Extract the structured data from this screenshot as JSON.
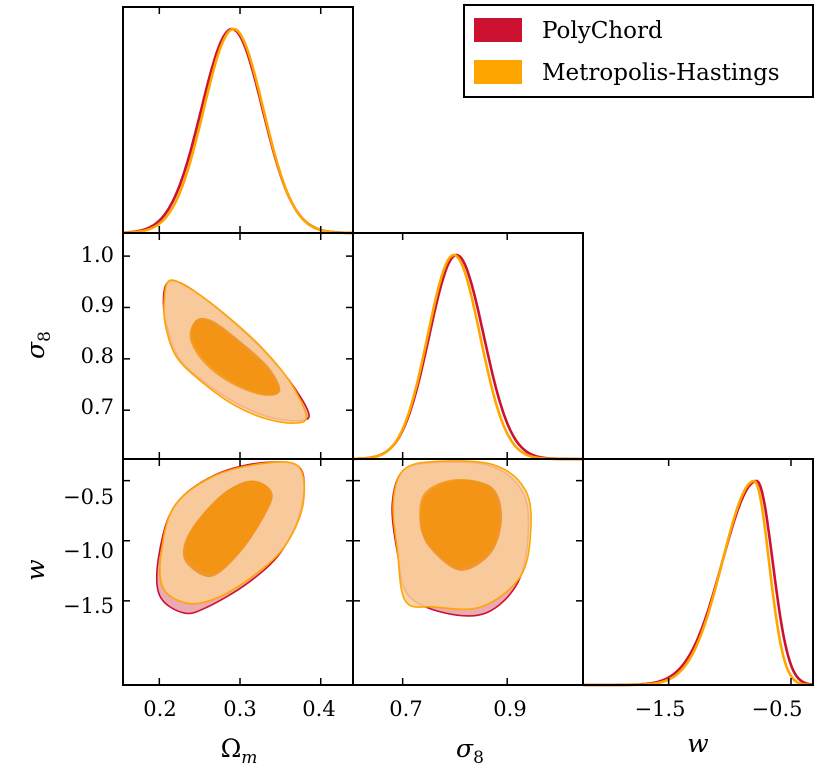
{
  "chart_data": {
    "type": "corner",
    "parameters": [
      "Ωm",
      "σ8",
      "w"
    ],
    "axis_labels": {
      "omega_m": {
        "base": "Ω",
        "sub": "m"
      },
      "sigma_8": {
        "base": "σ",
        "sub": "8"
      },
      "w": {
        "base": "w",
        "sub": ""
      }
    },
    "ranges": {
      "omega_m": [
        0.155,
        0.44
      ],
      "sigma_8": [
        0.605,
        1.045
      ],
      "w": [
        -2.2,
        -0.32
      ]
    },
    "ticks": {
      "omega_m": [
        0.2,
        0.3,
        0.4
      ],
      "sigma_8": [
        0.7,
        0.8,
        0.9,
        1.0
      ],
      "sigma_8_bottom": [
        0.7,
        0.9
      ],
      "w": [
        -0.5,
        -1.0,
        -1.5
      ],
      "w_bottom": [
        -1.5,
        -0.5
      ]
    },
    "tick_labels": {
      "omega_m": [
        "0.2",
        "0.3",
        "0.4"
      ],
      "sigma_8_left": [
        "0.7",
        "0.8",
        "0.9",
        "1.0"
      ],
      "sigma_8_bottom": [
        "0.7",
        "0.9"
      ],
      "w_left": [
        "−0.5",
        "−1.0",
        "−1.5"
      ],
      "w_bottom": [
        "−1.5",
        "−0.5"
      ]
    },
    "legend": {
      "location": "top-right",
      "entries": [
        {
          "label": "PolyChord",
          "color": "#cc1230"
        },
        {
          "label": "Metropolis-Hastings",
          "color": "#ffa500"
        }
      ]
    },
    "series": [
      {
        "name": "PolyChord",
        "color": "#cc1230",
        "light_fill": "#e8a0ab",
        "dark_fill": "#f08c1a",
        "marginals": {
          "omega_m": {
            "mean": 0.29,
            "sd": 0.038
          },
          "sigma_8": {
            "mean": 0.803,
            "sd": 0.052
          },
          "w": {
            "peak": -0.78,
            "sd_left": 0.28,
            "sd_right": 0.13
          }
        },
        "contours": {
          "omega_m_sigma_8": {
            "outer": [
              [
                0.21,
                0.948
              ],
              [
                0.23,
                0.945
              ],
              [
                0.27,
                0.9
              ],
              [
                0.32,
                0.83
              ],
              [
                0.36,
                0.76
              ],
              [
                0.385,
                0.695
              ],
              [
                0.375,
                0.68
              ],
              [
                0.34,
                0.685
              ],
              [
                0.3,
                0.71
              ],
              [
                0.26,
                0.75
              ],
              [
                0.225,
                0.8
              ],
              [
                0.21,
                0.86
              ],
              [
                0.205,
                0.91
              ]
            ],
            "inner": [
              [
                0.245,
                0.875
              ],
              [
                0.265,
                0.875
              ],
              [
                0.3,
                0.835
              ],
              [
                0.335,
                0.785
              ],
              [
                0.35,
                0.74
              ],
              [
                0.335,
                0.73
              ],
              [
                0.31,
                0.74
              ],
              [
                0.28,
                0.765
              ],
              [
                0.255,
                0.8
              ],
              [
                0.24,
                0.84
              ]
            ]
          },
          "omega_m_w": {
            "outer": [
              [
                0.2,
                -1.45
              ],
              [
                0.23,
                -1.6
              ],
              [
                0.26,
                -1.55
              ],
              [
                0.31,
                -1.35
              ],
              [
                0.35,
                -1.1
              ],
              [
                0.375,
                -0.75
              ],
              [
                0.375,
                -0.4
              ],
              [
                0.33,
                -0.35
              ],
              [
                0.27,
                -0.45
              ],
              [
                0.22,
                -0.7
              ],
              [
                0.2,
                -1.1
              ]
            ],
            "inner": [
              [
                0.235,
                -1.2
              ],
              [
                0.265,
                -1.3
              ],
              [
                0.3,
                -1.1
              ],
              [
                0.33,
                -0.8
              ],
              [
                0.34,
                -0.6
              ],
              [
                0.315,
                -0.5
              ],
              [
                0.28,
                -0.6
              ],
              [
                0.245,
                -0.85
              ],
              [
                0.23,
                -1.05
              ]
            ]
          },
          "sigma_8_w": {
            "outer": [
              [
                0.71,
                -1.45
              ],
              [
                0.78,
                -1.6
              ],
              [
                0.86,
                -1.6
              ],
              [
                0.92,
                -1.35
              ],
              [
                0.94,
                -0.95
              ],
              [
                0.93,
                -0.6
              ],
              [
                0.87,
                -0.38
              ],
              [
                0.76,
                -0.35
              ],
              [
                0.7,
                -0.42
              ],
              [
                0.68,
                -0.7
              ],
              [
                0.69,
                -1.1
              ]
            ],
            "inner": [
              [
                0.75,
                -1.05
              ],
              [
                0.81,
                -1.25
              ],
              [
                0.87,
                -1.1
              ],
              [
                0.89,
                -0.8
              ],
              [
                0.87,
                -0.55
              ],
              [
                0.8,
                -0.5
              ],
              [
                0.745,
                -0.62
              ],
              [
                0.735,
                -0.85
              ]
            ]
          }
        }
      },
      {
        "name": "Metropolis-Hastings",
        "color": "#ffa500",
        "light_fill": "#f9cf96",
        "dark_fill": "#f59412",
        "marginals": {
          "omega_m": {
            "mean": 0.292,
            "sd": 0.037
          },
          "sigma_8": {
            "mean": 0.798,
            "sd": 0.05
          },
          "w": {
            "peak": -0.8,
            "sd_left": 0.26,
            "sd_right": 0.12
          }
        },
        "contours": {
          "omega_m_sigma_8": {
            "outer": [
              [
                0.212,
                0.952
              ],
              [
                0.235,
                0.94
              ],
              [
                0.275,
                0.895
              ],
              [
                0.325,
                0.825
              ],
              [
                0.362,
                0.755
              ],
              [
                0.382,
                0.69
              ],
              [
                0.37,
                0.675
              ],
              [
                0.335,
                0.682
              ],
              [
                0.295,
                0.708
              ],
              [
                0.255,
                0.752
              ],
              [
                0.222,
                0.802
              ],
              [
                0.208,
                0.862
              ],
              [
                0.206,
                0.912
              ]
            ],
            "inner": [
              [
                0.243,
                0.87
              ],
              [
                0.262,
                0.872
              ],
              [
                0.297,
                0.832
              ],
              [
                0.333,
                0.78
              ],
              [
                0.348,
                0.737
              ],
              [
                0.333,
                0.728
              ],
              [
                0.308,
                0.738
              ],
              [
                0.277,
                0.763
              ],
              [
                0.252,
                0.798
              ],
              [
                0.238,
                0.838
              ]
            ]
          },
          "omega_m_w": {
            "outer": [
              [
                0.205,
                -1.4
              ],
              [
                0.235,
                -1.52
              ],
              [
                0.27,
                -1.48
              ],
              [
                0.315,
                -1.3
              ],
              [
                0.355,
                -1.05
              ],
              [
                0.378,
                -0.7
              ],
              [
                0.372,
                -0.38
              ],
              [
                0.325,
                -0.36
              ],
              [
                0.265,
                -0.47
              ],
              [
                0.218,
                -0.72
              ],
              [
                0.202,
                -1.12
              ]
            ],
            "inner": [
              [
                0.238,
                -1.18
              ],
              [
                0.268,
                -1.27
              ],
              [
                0.303,
                -1.07
              ],
              [
                0.332,
                -0.77
              ],
              [
                0.338,
                -0.58
              ],
              [
                0.312,
                -0.5
              ],
              [
                0.277,
                -0.62
              ],
              [
                0.243,
                -0.87
              ],
              [
                0.232,
                -1.06
              ]
            ]
          },
          "sigma_8_w": {
            "outer": [
              [
                0.705,
                -1.5
              ],
              [
                0.76,
                -1.55
              ],
              [
                0.85,
                -1.55
              ],
              [
                0.925,
                -1.3
              ],
              [
                0.945,
                -0.92
              ],
              [
                0.935,
                -0.58
              ],
              [
                0.875,
                -0.37
              ],
              [
                0.765,
                -0.34
              ],
              [
                0.702,
                -0.41
              ],
              [
                0.682,
                -0.68
              ],
              [
                0.69,
                -1.08
              ]
            ],
            "inner": [
              [
                0.748,
                -1.02
              ],
              [
                0.808,
                -1.22
              ],
              [
                0.868,
                -1.07
              ],
              [
                0.885,
                -0.78
              ],
              [
                0.862,
                -0.54
              ],
              [
                0.797,
                -0.49
              ],
              [
                0.742,
                -0.6
              ],
              [
                0.732,
                -0.83
              ]
            ]
          }
        }
      }
    ]
  }
}
